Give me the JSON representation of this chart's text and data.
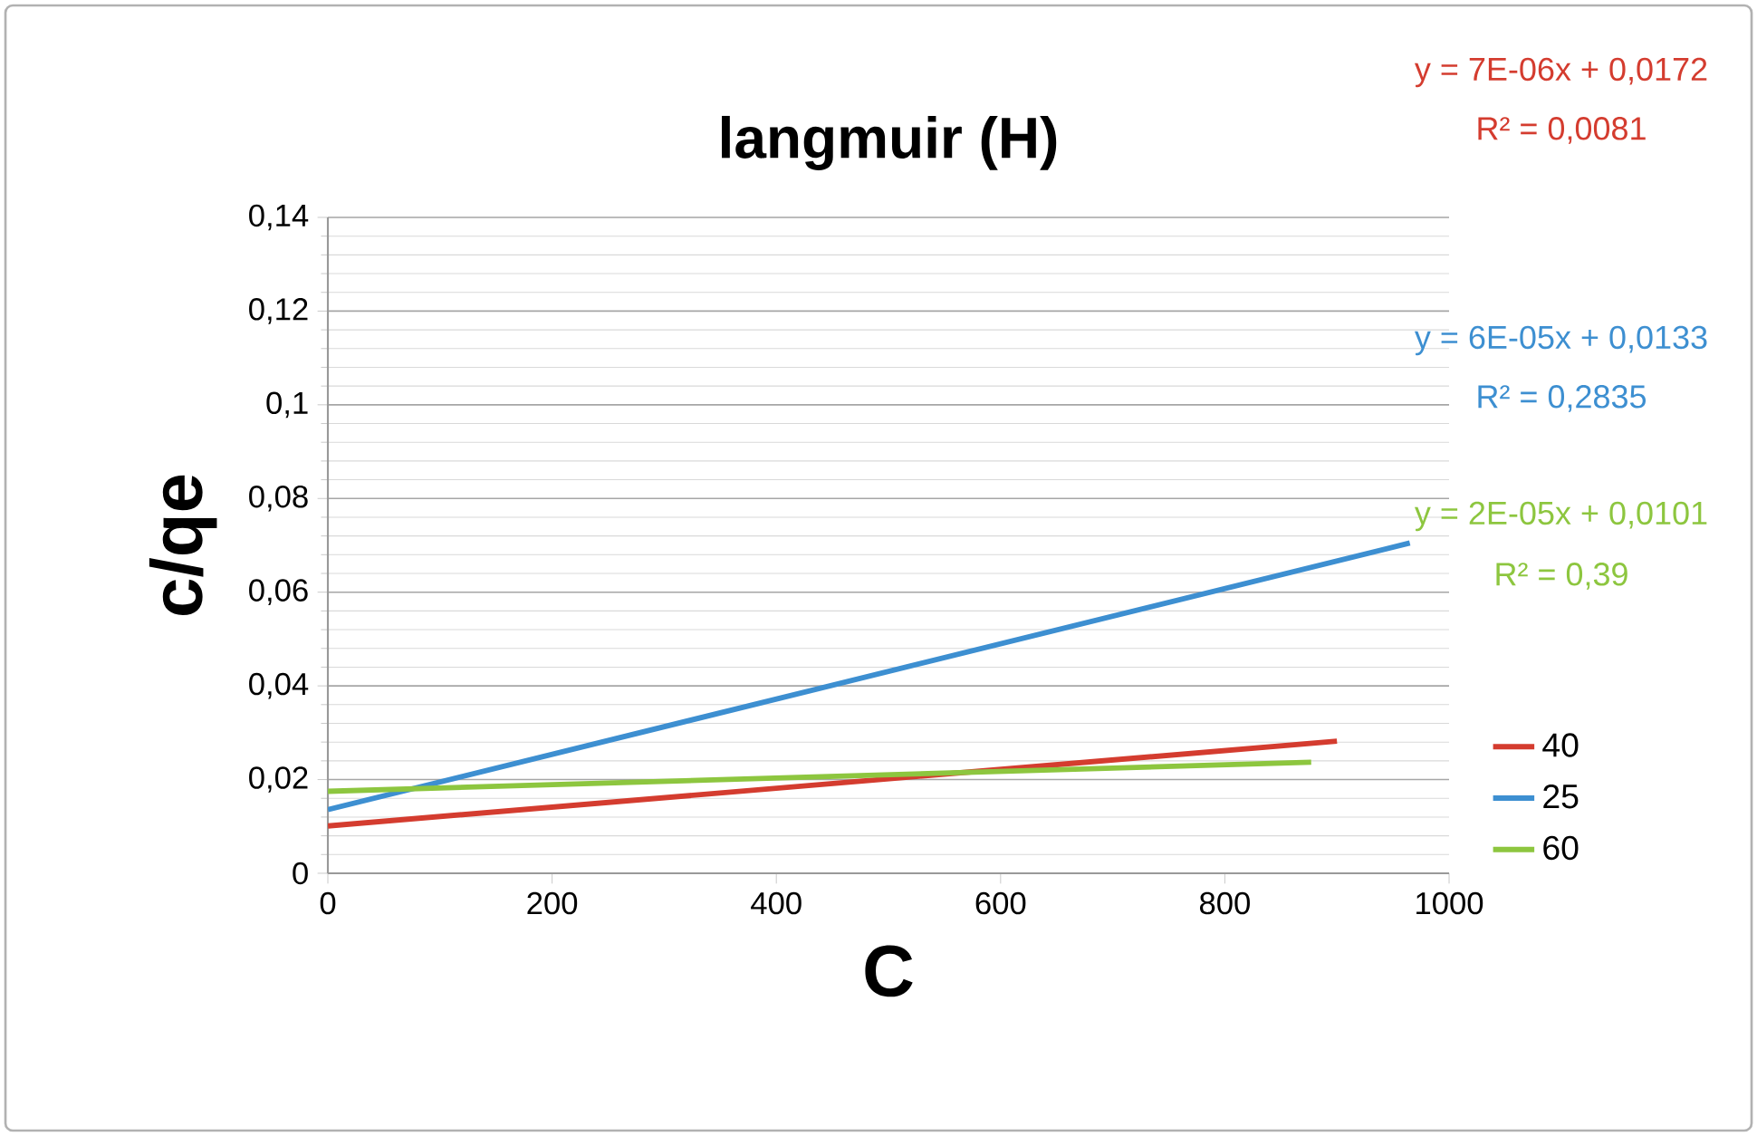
{
  "chart_data": {
    "type": "line",
    "title": "langmuir (H)",
    "xlabel": "C",
    "ylabel": "c/qe",
    "xlim": [
      0,
      1000
    ],
    "xticks": [
      0,
      200,
      400,
      600,
      800,
      1000
    ],
    "ylim": [
      0,
      0.14
    ],
    "yticks": [
      0,
      {
        "value": 0.02,
        "label": "0,02"
      },
      {
        "value": 0.04,
        "label": "0,04"
      },
      {
        "value": 0.06,
        "label": "0,06"
      },
      {
        "value": 0.08,
        "label": "0,08"
      },
      {
        "value": 0.1,
        "label": "0,1"
      },
      {
        "value": 0.12,
        "label": "0,12"
      },
      {
        "value": 0.14,
        "label": "0,14"
      }
    ],
    "grid": "y",
    "legend": "bottom right",
    "marker": "none",
    "line_style": "solid",
    "series": [
      {
        "name": "40",
        "color": "#d43c2f",
        "x": [
          0,
          900
        ],
        "values": [
          0.0101,
          0.0282
        ]
      },
      {
        "name": "25",
        "color": "#3d8fd1",
        "x": [
          0,
          965
        ],
        "values": [
          0.0136,
          0.0705
        ]
      },
      {
        "name": "60",
        "color": "#8dc63f",
        "x": [
          0,
          877
        ],
        "values": [
          0.0175,
          0.0237
        ]
      }
    ],
    "annotations": [
      "y = 7E-06x + 0,0172",
      "R² = 0,0081",
      "y = 6E-05x + 0,0133",
      "R² = 0,2835",
      "y = 2E-05x + 0,0101",
      "R² = 0,39"
    ]
  }
}
